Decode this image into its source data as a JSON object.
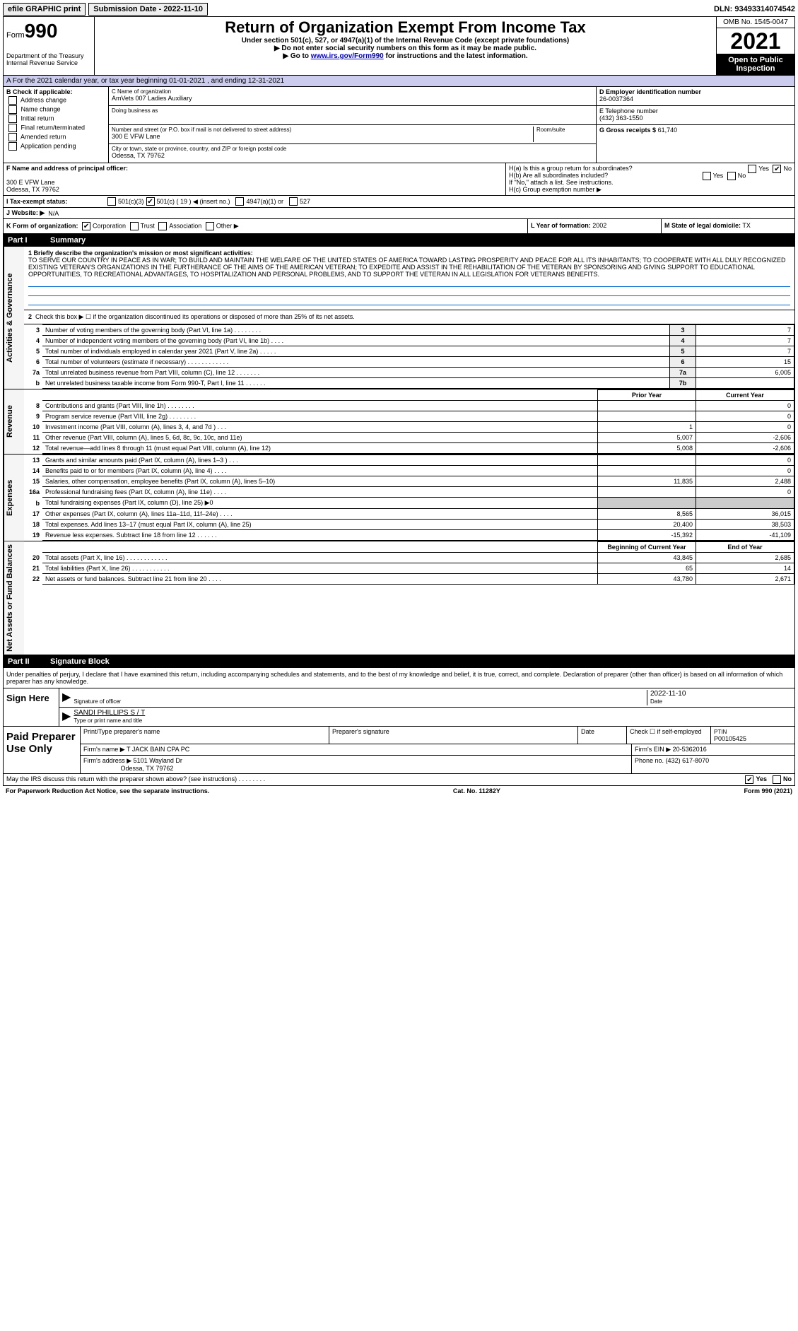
{
  "topbar": {
    "efile": "efile GRAPHIC print",
    "submission": "Submission Date - 2022-11-10",
    "dln_label": "DLN:",
    "dln": "93493314074542"
  },
  "header": {
    "form_prefix": "Form",
    "form_no": "990",
    "dept": "Department of the Treasury\nInternal Revenue Service",
    "title": "Return of Organization Exempt From Income Tax",
    "sub1": "Under section 501(c), 527, or 4947(a)(1) of the Internal Revenue Code (except private foundations)",
    "sub2": "▶ Do not enter social security numbers on this form as it may be made public.",
    "sub3_pre": "▶ Go to ",
    "sub3_link": "www.irs.gov/Form990",
    "sub3_post": " for instructions and the latest information.",
    "omb": "OMB No. 1545-0047",
    "year": "2021",
    "open": "Open to Public Inspection"
  },
  "row_a": "A For the 2021 calendar year, or tax year beginning 01-01-2021   , and ending 12-31-2021",
  "col_b": {
    "title": "B Check if applicable:",
    "items": [
      "Address change",
      "Name change",
      "Initial return",
      "Final return/terminated",
      "Amended return",
      "Application pending"
    ]
  },
  "col_c": {
    "c_label": "C Name of organization",
    "c_name": "AmVets 007 Ladies Auxiliary",
    "dba": "Doing business as",
    "addr_label": "Number and street (or P.O. box if mail is not delivered to street address)",
    "room_label": "Room/suite",
    "addr": "300 E VFW Lane",
    "city_label": "City or town, state or province, country, and ZIP or foreign postal code",
    "city": "Odessa, TX  79762"
  },
  "col_d": {
    "d_label": "D Employer identification number",
    "d_val": "26-0037364",
    "e_label": "E Telephone number",
    "e_val": "(432) 363-1550",
    "g_label": "G Gross receipts $",
    "g_val": "61,740"
  },
  "col_f": {
    "label": "F  Name and address of principal officer:",
    "addr1": "300 E VFW Lane",
    "addr2": "Odessa, TX  79762"
  },
  "col_h": {
    "h1a": "H(a)  Is this a group return for subordinates?",
    "h1b": "H(b)  Are all subordinates included?",
    "h1b_note": "If \"No,\" attach a list. See instructions.",
    "hc": "H(c)  Group exemption number ▶",
    "yes": "Yes",
    "no": "No"
  },
  "row_i": {
    "label": "I  Tax-exempt status:",
    "opts": [
      "501(c)(3)",
      "501(c) ( 19 ) ◀ (insert no.)",
      "4947(a)(1) or",
      "527"
    ]
  },
  "row_j": {
    "label": "J  Website: ▶",
    "val": "N/A"
  },
  "row_k": {
    "label": "K Form of organization:",
    "opts": [
      "Corporation",
      "Trust",
      "Association",
      "Other ▶"
    ]
  },
  "row_l": {
    "label": "L Year of formation:",
    "val": "2002"
  },
  "row_m": {
    "label": "M State of legal domicile:",
    "val": "TX"
  },
  "part1": {
    "header_pt": "Part I",
    "header_title": "Summary",
    "mission_label": "1  Briefly describe the organization's mission or most significant activities:",
    "mission": "TO SERVE OUR COUNTRY IN PEACE AS IN WAR; TO BUILD AND MAINTAIN THE WELFARE OF THE UNITED STATES OF AMERICA TOWARD LASTING PROSPERITY AND PEACE FOR ALL ITS INHABITANTS; TO COOPERATE WITH ALL DULY RECOGNIZED EXISTING VETERAN'S ORGANIZATIONS IN THE FURTHERANCE OF THE AIMS OF THE AMERICAN VETERAN; TO EXPEDITE AND ASSIST IN THE REHABILITATION OF THE VETERAN BY SPONSORING AND GIVING SUPPORT TO EDUCATIONAL OPPORTUNITIES, TO RECREATIONAL ADVANTAGES, TO HOSPITALIZATION AND PERSONAL PROBLEMS, AND TO SUPPORT THE VETERAN IN ALL LEGISLATION FOR VETERANS BENEFITS.",
    "line2": "Check this box ▶ ☐ if the organization discontinued its operations or disposed of more than 25% of its net assets."
  },
  "vtabs": {
    "gov": "Activities & Governance",
    "rev": "Revenue",
    "exp": "Expenses",
    "net": "Net Assets or Fund Balances"
  },
  "gov_rows": [
    {
      "n": "3",
      "d": "Number of voting members of the governing body (Part VI, line 1a)  .   .   .   .   .   .   .   .",
      "box": "3",
      "v": "7"
    },
    {
      "n": "4",
      "d": "Number of independent voting members of the governing body (Part VI, line 1b)  .   .   .   .",
      "box": "4",
      "v": "7"
    },
    {
      "n": "5",
      "d": "Total number of individuals employed in calendar year 2021 (Part V, line 2a)  .   .   .   .   .",
      "box": "5",
      "v": "7"
    },
    {
      "n": "6",
      "d": "Total number of volunteers (estimate if necessary)  .   .   .   .   .   .   .   .   .   .   .   .",
      "box": "6",
      "v": "15"
    },
    {
      "n": "7a",
      "d": "Total unrelated business revenue from Part VIII, column (C), line 12  .   .   .   .   .   .   .",
      "box": "7a",
      "v": "6,005"
    },
    {
      "n": "b",
      "d": "Net unrelated business taxable income from Form 990-T, Part I, line 11  .   .   .   .   .   .",
      "box": "7b",
      "v": ""
    }
  ],
  "two_col_header": {
    "py": "Prior Year",
    "cy": "Current Year"
  },
  "rev_rows": [
    {
      "n": "8",
      "d": "Contributions and grants (Part VIII, line 1h)  .   .   .   .   .   .   .   .",
      "py": "",
      "cy": "0"
    },
    {
      "n": "9",
      "d": "Program service revenue (Part VIII, line 2g)  .   .   .   .   .   .   .   .",
      "py": "",
      "cy": "0"
    },
    {
      "n": "10",
      "d": "Investment income (Part VIII, column (A), lines 3, 4, and 7d )  .   .   .",
      "py": "1",
      "cy": "0"
    },
    {
      "n": "11",
      "d": "Other revenue (Part VIII, column (A), lines 5, 6d, 8c, 9c, 10c, and 11e)",
      "py": "5,007",
      "cy": "-2,606"
    },
    {
      "n": "12",
      "d": "Total revenue—add lines 8 through 11 (must equal Part VIII, column (A), line 12)",
      "py": "5,008",
      "cy": "-2,606"
    }
  ],
  "exp_rows": [
    {
      "n": "13",
      "d": "Grants and similar amounts paid (Part IX, column (A), lines 1–3 )  .   .   .",
      "py": "",
      "cy": "0"
    },
    {
      "n": "14",
      "d": "Benefits paid to or for members (Part IX, column (A), line 4)  .   .   .   .",
      "py": "",
      "cy": "0"
    },
    {
      "n": "15",
      "d": "Salaries, other compensation, employee benefits (Part IX, column (A), lines 5–10)",
      "py": "11,835",
      "cy": "2,488"
    },
    {
      "n": "16a",
      "d": "Professional fundraising fees (Part IX, column (A), line 11e)  .   .   .   .",
      "py": "",
      "cy": "0"
    },
    {
      "n": "b",
      "d": "Total fundraising expenses (Part IX, column (D), line 25) ▶0",
      "py": "grey",
      "cy": "grey"
    },
    {
      "n": "17",
      "d": "Other expenses (Part IX, column (A), lines 11a–11d, 11f–24e)  .   .   .   .",
      "py": "8,565",
      "cy": "36,015"
    },
    {
      "n": "18",
      "d": "Total expenses. Add lines 13–17 (must equal Part IX, column (A), line 25)",
      "py": "20,400",
      "cy": "38,503"
    },
    {
      "n": "19",
      "d": "Revenue less expenses. Subtract line 18 from line 12  .   .   .   .   .   .",
      "py": "-15,392",
      "cy": "-41,109"
    }
  ],
  "net_header": {
    "b": "Beginning of Current Year",
    "e": "End of Year"
  },
  "net_rows": [
    {
      "n": "20",
      "d": "Total assets (Part X, line 16)  .   .   .   .   .   .   .   .   .   .   .   .",
      "py": "43,845",
      "cy": "2,685"
    },
    {
      "n": "21",
      "d": "Total liabilities (Part X, line 26)  .   .   .   .   .   .   .   .   .   .   .",
      "py": "65",
      "cy": "14"
    },
    {
      "n": "22",
      "d": "Net assets or fund balances. Subtract line 21 from line 20  .   .   .   .",
      "py": "43,780",
      "cy": "2,671"
    }
  ],
  "part2": {
    "header_pt": "Part II",
    "header_title": "Signature Block",
    "decl": "Under penalties of perjury, I declare that I have examined this return, including accompanying schedules and statements, and to the best of my knowledge and belief, it is true, correct, and complete. Declaration of preparer (other than officer) is based on all information of which preparer has any knowledge."
  },
  "sign": {
    "label": "Sign Here",
    "sig_label": "Signature of officer",
    "date_label": "Date",
    "date": "2022-11-10",
    "name": "SANDI PHILLIPS  S / T",
    "name_label": "Type or print name and title"
  },
  "paid": {
    "label": "Paid Preparer Use Only",
    "h1": "Print/Type preparer's name",
    "h2": "Preparer's signature",
    "h3": "Date",
    "h4": "Check ☐ if self-employed",
    "h5_label": "PTIN",
    "h5": "P00105425",
    "firm_name_label": "Firm's name    ▶",
    "firm_name": "T JACK BAIN CPA PC",
    "firm_ein_label": "Firm's EIN ▶",
    "firm_ein": "20-5362016",
    "firm_addr_label": "Firm's address ▶",
    "firm_addr1": "5101 Wayland Dr",
    "firm_addr2": "Odessa, TX  79762",
    "phone_label": "Phone no.",
    "phone": "(432) 617-8070"
  },
  "footer": {
    "discuss": "May the IRS discuss this return with the preparer shown above? (see instructions)  .   .   .   .   .   .   .   .",
    "yes": "Yes",
    "no": "No",
    "pra": "For Paperwork Reduction Act Notice, see the separate instructions.",
    "cat": "Cat. No. 11282Y",
    "form": "Form 990 (2021)"
  }
}
